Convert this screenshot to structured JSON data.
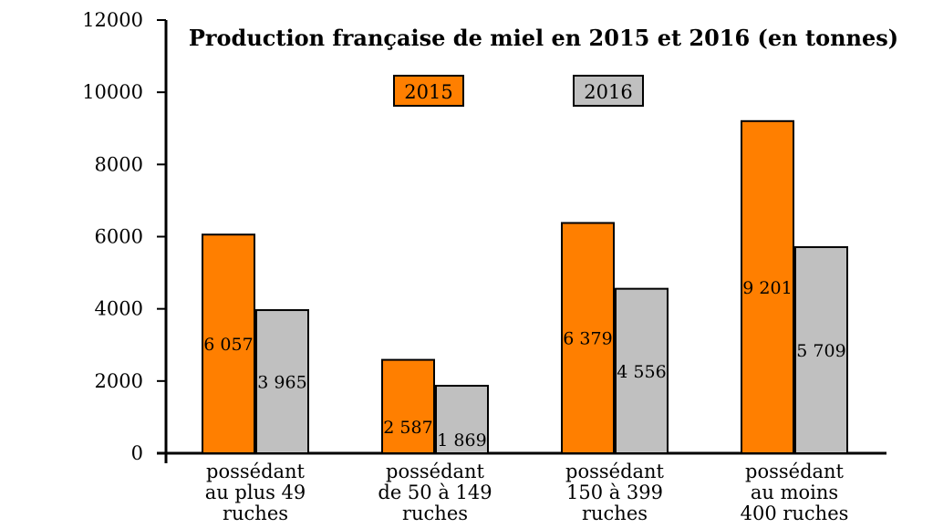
{
  "chart_data": {
    "type": "bar",
    "title": "Production française de miel en 2015 et 2016 (en tonnes)",
    "categories": [
      [
        "possédant",
        "au plus 49",
        "ruches"
      ],
      [
        "possédant",
        "de 50 à 149",
        "ruches"
      ],
      [
        "possédant",
        "150 à 399",
        "ruches"
      ],
      [
        "possédant",
        "au moins",
        "400 ruches"
      ]
    ],
    "series": [
      {
        "name": "2015",
        "color": "#ff7f00",
        "values": [
          6057,
          2587,
          6379,
          9201
        ],
        "labels": [
          "6 057",
          "2 587",
          "6 379",
          "9 201"
        ]
      },
      {
        "name": "2016",
        "color": "#c0c0c0",
        "values": [
          3965,
          1869,
          4556,
          5709
        ],
        "labels": [
          "3 965",
          "1 869",
          "4 556",
          "5 709"
        ]
      }
    ],
    "ylim": [
      0,
      12000
    ],
    "yticks": [
      0,
      2000,
      4000,
      6000,
      8000,
      10000,
      12000
    ],
    "ytick_labels": [
      "0",
      "2000",
      "4000",
      "6000",
      "8000",
      "10000",
      "12000"
    ],
    "grid": false,
    "legend_position": "top"
  }
}
